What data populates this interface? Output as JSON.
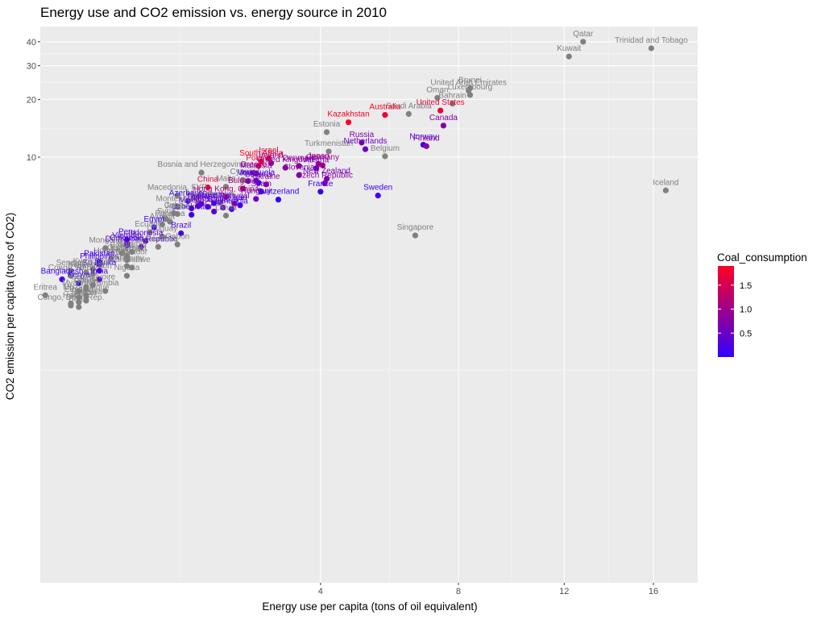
{
  "chart_data": {
    "type": "scatter",
    "title": "Energy use and CO2 emission vs. energy source in 2010",
    "xlabel": "Energy use per capita (tons of oil equivalent)",
    "ylabel": "CO2 emission per capita (tons of CO2)",
    "x_scale": "sqrt",
    "y_scale": "log",
    "xlim": [
      0.1,
      18.2
    ],
    "ylim": [
      0.06,
      48
    ],
    "x_ticks": [
      4,
      8,
      12,
      16
    ],
    "y_ticks": [
      10,
      20,
      30,
      40
    ],
    "grid": true,
    "legend": {
      "title": "Coal_consumption",
      "placement": "right",
      "ticks": [
        0.5,
        1.0,
        1.5
      ],
      "tick_labels": [
        "0.5",
        "1.0",
        "1.5"
      ],
      "range": [
        0,
        1.9
      ],
      "low_color": "#3300ff",
      "high_color": "#ff0022",
      "na_color": "#808080"
    },
    "points": [
      {
        "label": "Qatar",
        "x": 12.8,
        "y": 40.0,
        "coal": null
      },
      {
        "label": "Trinidad and Tobago",
        "x": 15.9,
        "y": 37.0,
        "coal": null
      },
      {
        "label": "Kuwait",
        "x": 12.2,
        "y": 33.5,
        "coal": null
      },
      {
        "label": "Brunei",
        "x": 8.4,
        "y": 22.9,
        "coal": null
      },
      {
        "label": "United Arab Emirates",
        "x": 8.35,
        "y": 22.2,
        "coal": null
      },
      {
        "label": "Luxembourg",
        "x": 8.4,
        "y": 21.1,
        "coal": null
      },
      {
        "label": "Oman",
        "x": 7.3,
        "y": 20.4,
        "coal": null
      },
      {
        "label": "Bahrain",
        "x": 7.8,
        "y": 19.0,
        "coal": null
      },
      {
        "label": "United States",
        "x": 7.4,
        "y": 17.5,
        "coal": 1.75
      },
      {
        "label": "Saudi Arabia",
        "x": 6.4,
        "y": 16.8,
        "coal": null
      },
      {
        "label": "Australia",
        "x": 5.7,
        "y": 16.6,
        "coal": 1.8
      },
      {
        "label": "Kazakhstan",
        "x": 4.7,
        "y": 15.2,
        "coal": 1.9
      },
      {
        "label": "Canada",
        "x": 7.5,
        "y": 14.6,
        "coal": 0.75
      },
      {
        "label": "Estonia",
        "x": 4.15,
        "y": 13.5,
        "coal": null
      },
      {
        "label": "Russia",
        "x": 5.05,
        "y": 11.9,
        "coal": 0.65
      },
      {
        "label": "Norway",
        "x": 6.85,
        "y": 11.6,
        "coal": 0.1
      },
      {
        "label": "Finland",
        "x": 6.95,
        "y": 11.4,
        "coal": 0.85
      },
      {
        "label": "Netherlands",
        "x": 5.15,
        "y": 11.0,
        "coal": 0.5
      },
      {
        "label": "Turkmenistan",
        "x": 4.2,
        "y": 10.7,
        "coal": null
      },
      {
        "label": "Belgium",
        "x": 5.7,
        "y": 10.1,
        "coal": null
      },
      {
        "label": "Israel",
        "x": 2.85,
        "y": 9.85,
        "coal": 1.65
      },
      {
        "label": "South Africa",
        "x": 2.7,
        "y": 9.5,
        "coal": 1.9
      },
      {
        "label": "Ireland",
        "x": 2.9,
        "y": 9.3,
        "coal": 0.9
      },
      {
        "label": "Bosnia and Herzegovina",
        "x": 1.65,
        "y": 8.3,
        "coal": null
      },
      {
        "label": "Japan",
        "x": 3.95,
        "y": 9.2,
        "coal": 1.0
      },
      {
        "label": "Germany",
        "x": 4.05,
        "y": 9.05,
        "coal": 0.95
      },
      {
        "label": "Poland",
        "x": 2.65,
        "y": 9.0,
        "coal": 1.75
      },
      {
        "label": "Denmark",
        "x": 3.5,
        "y": 9.0,
        "coal": 0.9
      },
      {
        "label": "United Kingdom",
        "x": 3.2,
        "y": 8.8,
        "coal": 0.85
      },
      {
        "label": "Austria",
        "x": 3.9,
        "y": 8.75,
        "coal": 0.6
      },
      {
        "label": "Greece",
        "x": 2.55,
        "y": 8.3,
        "coal": 1.0
      },
      {
        "label": "Malaysia",
        "x": 2.6,
        "y": 8.2,
        "coal": 0.8
      },
      {
        "label": "Slovenia",
        "x": 3.5,
        "y": 8.05,
        "coal": 0.7
      },
      {
        "label": "New Zealand",
        "x": 4.15,
        "y": 7.7,
        "coal": 0.6
      },
      {
        "label": "Cyprus",
        "x": 2.35,
        "y": 7.6,
        "coal": null
      },
      {
        "label": "Venezuela",
        "x": 2.6,
        "y": 7.55,
        "coal": 0.1
      },
      {
        "label": "Italy",
        "x": 2.45,
        "y": 7.5,
        "coal": 0.5
      },
      {
        "label": "Czech Republic",
        "x": 4.1,
        "y": 7.3,
        "coal": 0.8
      },
      {
        "label": "Belarus",
        "x": 2.65,
        "y": 7.35,
        "coal": 0.3
      },
      {
        "label": "Ukraine",
        "x": 2.8,
        "y": 7.2,
        "coal": 1.0
      },
      {
        "label": "Malta",
        "x": 2.05,
        "y": 7.0,
        "coal": null
      },
      {
        "label": "China",
        "x": 1.75,
        "y": 6.95,
        "coal": 1.6
      },
      {
        "label": "Bulgaria",
        "x": 2.35,
        "y": 6.85,
        "coal": 1.1
      },
      {
        "label": "Spain",
        "x": 2.7,
        "y": 6.6,
        "coal": 0.4
      },
      {
        "label": "France",
        "x": 4.0,
        "y": 6.6,
        "coal": 0.1
      },
      {
        "label": "Sweden",
        "x": 5.5,
        "y": 6.3,
        "coal": 0.15
      },
      {
        "label": "Macedonia, FYR",
        "x": 1.3,
        "y": 6.3,
        "coal": null
      },
      {
        "label": "Hong Kong, China",
        "x": 2.05,
        "y": 6.2,
        "coal": 1.2
      },
      {
        "label": "Hungary",
        "x": 2.6,
        "y": 6.05,
        "coal": 0.6
      },
      {
        "label": "Switzerland",
        "x": 3.05,
        "y": 6.0,
        "coal": 0.05
      },
      {
        "label": "Azerbaijan",
        "x": 1.45,
        "y": 5.9,
        "coal": 0.05
      },
      {
        "label": "Lebanon",
        "x": 1.6,
        "y": 5.8,
        "coal": null
      },
      {
        "label": "Croatia",
        "x": 1.95,
        "y": 5.8,
        "coal": null
      },
      {
        "label": "Portugal",
        "x": 2.2,
        "y": 5.7,
        "coal": 0.8
      },
      {
        "label": "Argentina",
        "x": 1.85,
        "y": 5.75,
        "coal": 0.2
      },
      {
        "label": "Turkey",
        "x": 1.6,
        "y": 5.55,
        "coal": 0.55
      },
      {
        "label": "Mexico",
        "x": 1.5,
        "y": 5.4,
        "coal": 0.4
      },
      {
        "label": "Montenegro",
        "x": 1.3,
        "y": 5.5,
        "coal": null
      },
      {
        "label": "Romania",
        "x": 1.75,
        "y": 5.5,
        "coal": 0.45
      },
      {
        "label": "Slovakia",
        "x": 2.0,
        "y": 5.45,
        "coal": 0.45
      },
      {
        "label": "Lithuania",
        "x": 2.15,
        "y": 5.35,
        "coal": 0.15
      },
      {
        "label": "Chile",
        "x": 1.85,
        "y": 5.2,
        "coal": 0.35
      },
      {
        "label": "Iran",
        "x": 2.3,
        "y": 5.6,
        "coal": 0.15
      },
      {
        "label": "Thailand",
        "x": 1.65,
        "y": 5.7,
        "coal": 0.45
      },
      {
        "label": "Uzbekistan",
        "x": 1.5,
        "y": 5.0,
        "coal": 0.05
      },
      {
        "label": "Jordan",
        "x": 1.3,
        "y": 5.05,
        "coal": null
      },
      {
        "label": "Cuba",
        "x": 1.25,
        "y": 5.1,
        "coal": null
      },
      {
        "label": "Latvia",
        "x": 2.05,
        "y": 4.95,
        "coal": null
      },
      {
        "label": "Syria",
        "x": 1.15,
        "y": 4.75,
        "coal": null
      },
      {
        "label": "Panama",
        "x": 1.2,
        "y": 4.6,
        "coal": null
      },
      {
        "label": "Algeria",
        "x": 1.1,
        "y": 4.45,
        "coal": null
      },
      {
        "label": "Egypt",
        "x": 1.0,
        "y": 4.3,
        "coal": 0.05
      },
      {
        "label": "Ecuador",
        "x": 0.95,
        "y": 4.05,
        "coal": null
      },
      {
        "label": "Brazil",
        "x": 1.35,
        "y": 4.0,
        "coal": 0.2
      },
      {
        "label": "Uruguay",
        "x": 1.1,
        "y": 3.85,
        "coal": null
      },
      {
        "label": "Peru",
        "x": 0.7,
        "y": 3.7,
        "coal": 0.1
      },
      {
        "label": "Indonesia",
        "x": 0.9,
        "y": 3.65,
        "coal": 0.4
      },
      {
        "label": "Vietnam",
        "x": 0.7,
        "y": 3.55,
        "coal": 0.35
      },
      {
        "label": "Gabon",
        "x": 1.3,
        "y": 3.5,
        "coal": null
      },
      {
        "label": "Colombia",
        "x": 0.7,
        "y": 3.45,
        "coal": 0.2
      },
      {
        "label": "Dominican Republic",
        "x": 0.85,
        "y": 3.4,
        "coal": 0.3
      },
      {
        "label": "Costa Rica",
        "x": 1.05,
        "y": 3.4,
        "coal": null
      },
      {
        "label": "Mongolia",
        "x": 0.5,
        "y": 3.35,
        "coal": null
      },
      {
        "label": "Namibia",
        "x": 0.75,
        "y": 3.2,
        "coal": null
      },
      {
        "label": "Bolivia",
        "x": 0.65,
        "y": 3.15,
        "coal": null
      },
      {
        "label": "Guatemala",
        "x": 0.7,
        "y": 3.05,
        "coal": null
      },
      {
        "label": "Honduras",
        "x": 0.55,
        "y": 2.95,
        "coal": null
      },
      {
        "label": "El Salvador",
        "x": 0.7,
        "y": 2.9,
        "coal": null
      },
      {
        "label": "Pakistan",
        "x": 0.45,
        "y": 2.85,
        "coal": 0.05
      },
      {
        "label": "Philippines",
        "x": 0.45,
        "y": 2.75,
        "coal": 0.25
      },
      {
        "label": "Paraguay",
        "x": 0.7,
        "y": 2.7,
        "coal": null
      },
      {
        "label": "Zimbabwe",
        "x": 0.75,
        "y": 2.65,
        "coal": null
      },
      {
        "label": "Senegal",
        "x": 0.25,
        "y": 2.55,
        "coal": null
      },
      {
        "label": "Sri Lanka",
        "x": 0.45,
        "y": 2.55,
        "coal": 0.1
      },
      {
        "label": "Nicaragua",
        "x": 0.35,
        "y": 2.5,
        "coal": null
      },
      {
        "label": "Cameroon",
        "x": 0.4,
        "y": 2.45,
        "coal": null
      },
      {
        "label": "Congo, Rep.",
        "x": 0.25,
        "y": 2.4,
        "coal": null
      },
      {
        "label": "Nigeria",
        "x": 0.7,
        "y": 2.4,
        "coal": null
      },
      {
        "label": "Bangladesh",
        "x": 0.2,
        "y": 2.3,
        "coal": 0.1
      },
      {
        "label": "India",
        "x": 0.45,
        "y": 2.3,
        "coal": 0.3
      },
      {
        "label": "Kenya",
        "x": 0.3,
        "y": 2.2,
        "coal": 0.05
      },
      {
        "label": "Cote d'Ivoire",
        "x": 0.4,
        "y": 2.15,
        "coal": null
      },
      {
        "label": "Sudan",
        "x": 0.35,
        "y": 2.1,
        "coal": null
      },
      {
        "label": "Ghana",
        "x": 0.35,
        "y": 2.05,
        "coal": null
      },
      {
        "label": "Myanmar",
        "x": 0.3,
        "y": 2.0,
        "coal": null
      },
      {
        "label": "Zambia",
        "x": 0.5,
        "y": 2.0,
        "coal": null
      },
      {
        "label": "Eritrea",
        "x": 0.12,
        "y": 1.9,
        "coal": null
      },
      {
        "label": "Mozambique",
        "x": 0.35,
        "y": 1.9,
        "coal": null
      },
      {
        "label": "Ethiopia",
        "x": 0.3,
        "y": 1.85,
        "coal": null
      },
      {
        "label": "Tanzania",
        "x": 0.35,
        "y": 1.8,
        "coal": null
      },
      {
        "label": "Nepal",
        "x": 0.35,
        "y": 1.78,
        "coal": null
      },
      {
        "label": "Togo",
        "x": 0.3,
        "y": 1.75,
        "coal": null
      },
      {
        "label": "Haiti",
        "x": 0.25,
        "y": 1.72,
        "coal": null
      },
      {
        "label": "Congo, Dem. Rep.",
        "x": 0.25,
        "y": 1.68,
        "coal": null
      },
      {
        "label": "Benin",
        "x": 0.3,
        "y": 1.65,
        "coal": null
      },
      {
        "label": "Tajikistan",
        "x": 0.7,
        "y": 3.0,
        "coal": null
      },
      {
        "label": "Kyrgyzstan",
        "x": 0.4,
        "y": 2.6,
        "coal": null
      },
      {
        "label": "Singapore",
        "x": 6.6,
        "y": 3.9,
        "coal": null
      },
      {
        "label": "Iceland",
        "x": 16.6,
        "y": 6.7,
        "coal": null
      }
    ]
  }
}
